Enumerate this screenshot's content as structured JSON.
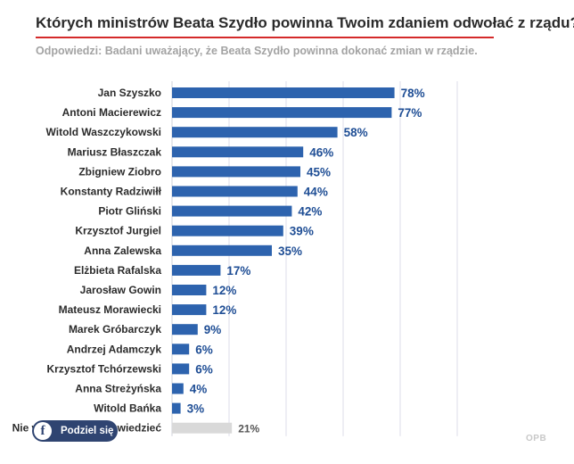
{
  "chart_data": {
    "type": "bar",
    "orientation": "horizontal",
    "title": "Których ministrów Beata Szydło powinna Twoim zdaniem odwołać z rządu?",
    "subtitle": "Odpowiedzi: Badani uważający, że Beata Szydło powinna dokonać zmian w rządzie.",
    "categories": [
      "Jan Szyszko",
      "Antoni Macierewicz",
      "Witold Waszczykowski",
      "Mariusz Błaszczak",
      "Zbigniew Ziobro",
      "Konstanty Radziwiłł",
      "Piotr Gliński",
      "Krzysztof Jurgiel",
      "Anna Zalewska",
      "Elżbieta Rafalska",
      "Jarosław Gowin",
      "Mateusz Morawiecki",
      "Marek Gróbarczyk",
      "Andrzej Adamczyk",
      "Krzysztof Tchórzewski",
      "Anna Streżyńska",
      "Witold Bańka",
      "Nie wiem / trudno powiedzieć"
    ],
    "values": [
      78,
      77,
      58,
      46,
      45,
      44,
      42,
      39,
      35,
      17,
      12,
      12,
      9,
      6,
      6,
      4,
      3,
      21
    ],
    "value_labels": [
      "78%",
      "77%",
      "58%",
      "46%",
      "45%",
      "44%",
      "42%",
      "39%",
      "35%",
      "17%",
      "12%",
      "12%",
      "9%",
      "6%",
      "6%",
      "4%",
      "3%",
      "21%"
    ],
    "xlim": [
      0,
      100
    ],
    "grid": true,
    "colors": {
      "bar": "#2d63ae",
      "bar_last": "#d9d9d9",
      "label": "#1f4e95",
      "label_last": "#555555",
      "title_rule": "#d42a2a"
    }
  },
  "share": {
    "label": "Podziel się",
    "icon": "facebook-icon"
  },
  "logo": {
    "text": "OPB"
  }
}
